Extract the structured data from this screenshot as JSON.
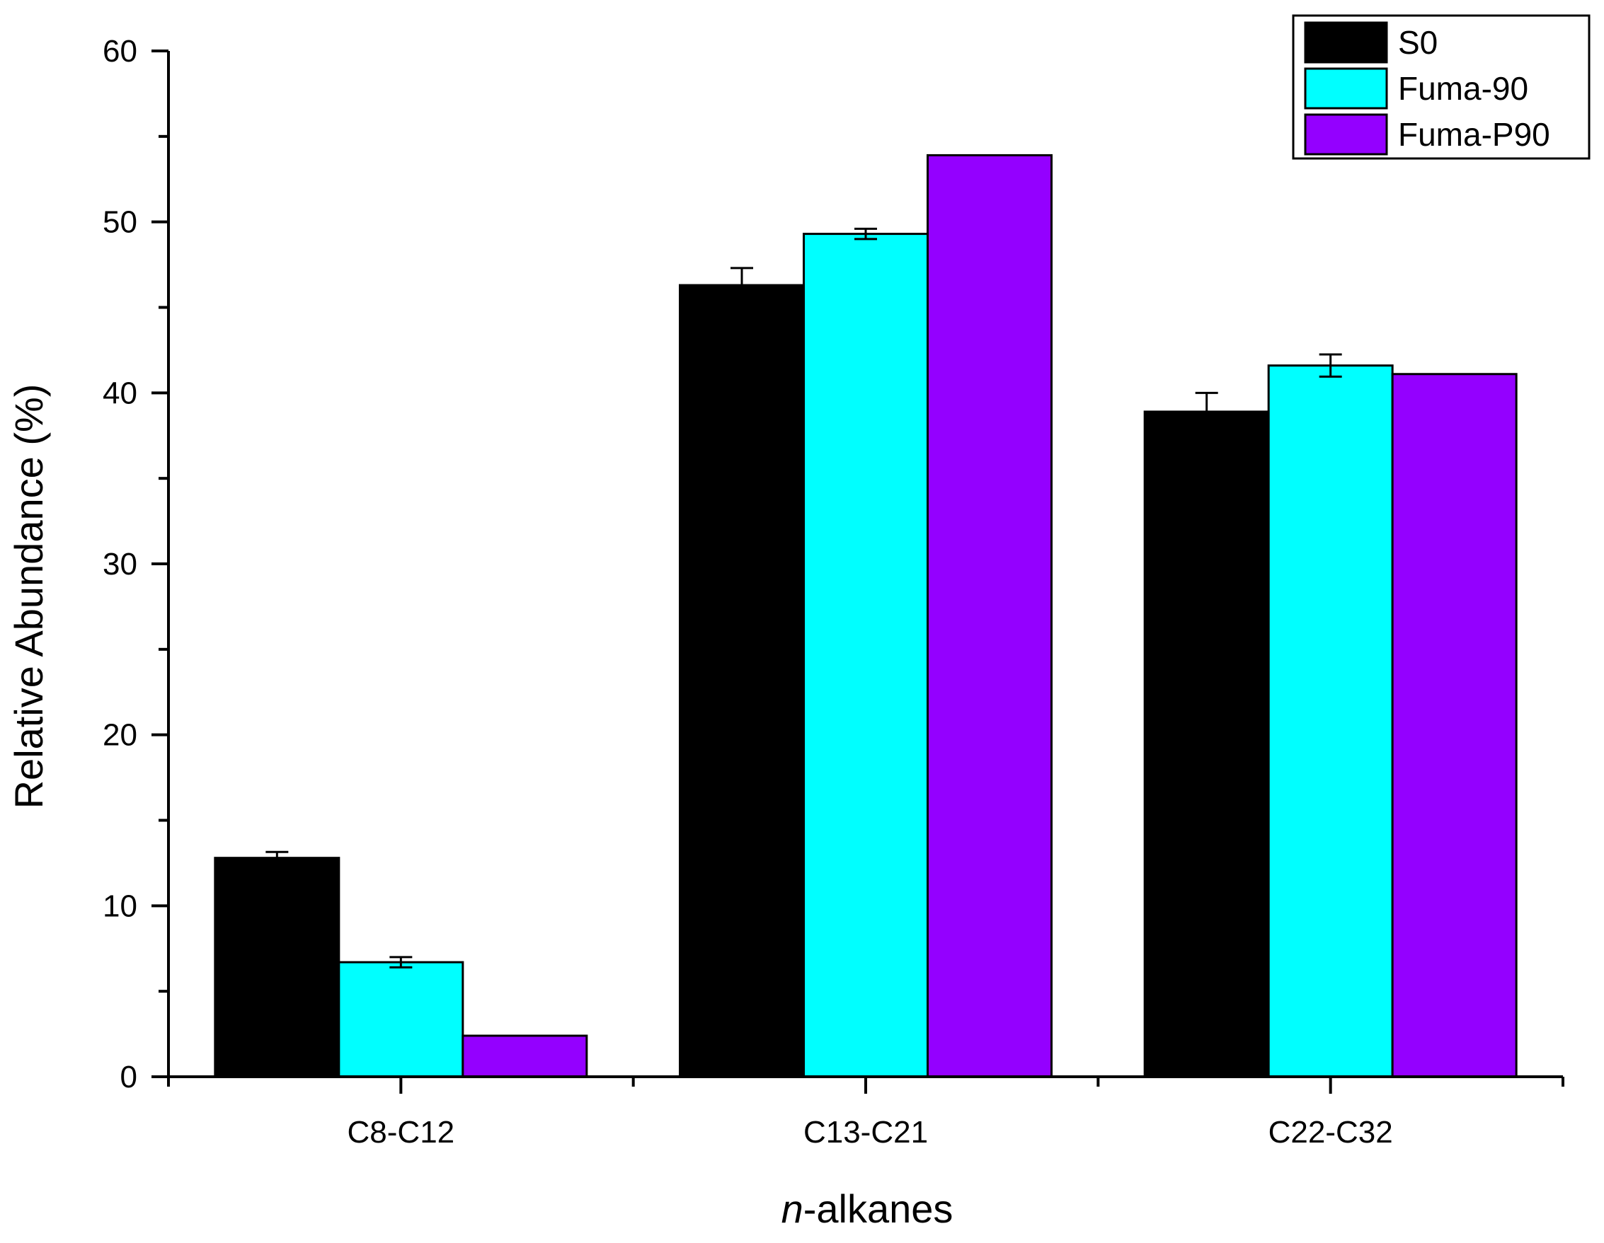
{
  "chart_data": {
    "type": "bar",
    "title": "",
    "xlabel_italic": "n",
    "xlabel_rest": "-alkanes",
    "ylabel": "Relative Abundance (%)",
    "ylim": [
      0,
      60
    ],
    "yticks": [
      0,
      10,
      20,
      30,
      40,
      50,
      60
    ],
    "categories": [
      "C8-C12",
      "C13-C21",
      "C22-C32"
    ],
    "series": [
      {
        "name": "S0",
        "color": "#000000",
        "values": [
          12.8,
          46.3,
          38.9
        ],
        "errors": [
          0.35,
          1.0,
          1.1
        ]
      },
      {
        "name": "Fuma-90",
        "color": "#00ffff",
        "values": [
          6.7,
          49.3,
          41.6
        ],
        "errors": [
          0.3,
          0.3,
          0.65
        ]
      },
      {
        "name": "Fuma-P90",
        "color": "#9400ff",
        "values": [
          2.4,
          53.9,
          41.1
        ],
        "errors": [
          0,
          0,
          0
        ]
      }
    ],
    "legend": "top-right",
    "grid": false
  }
}
